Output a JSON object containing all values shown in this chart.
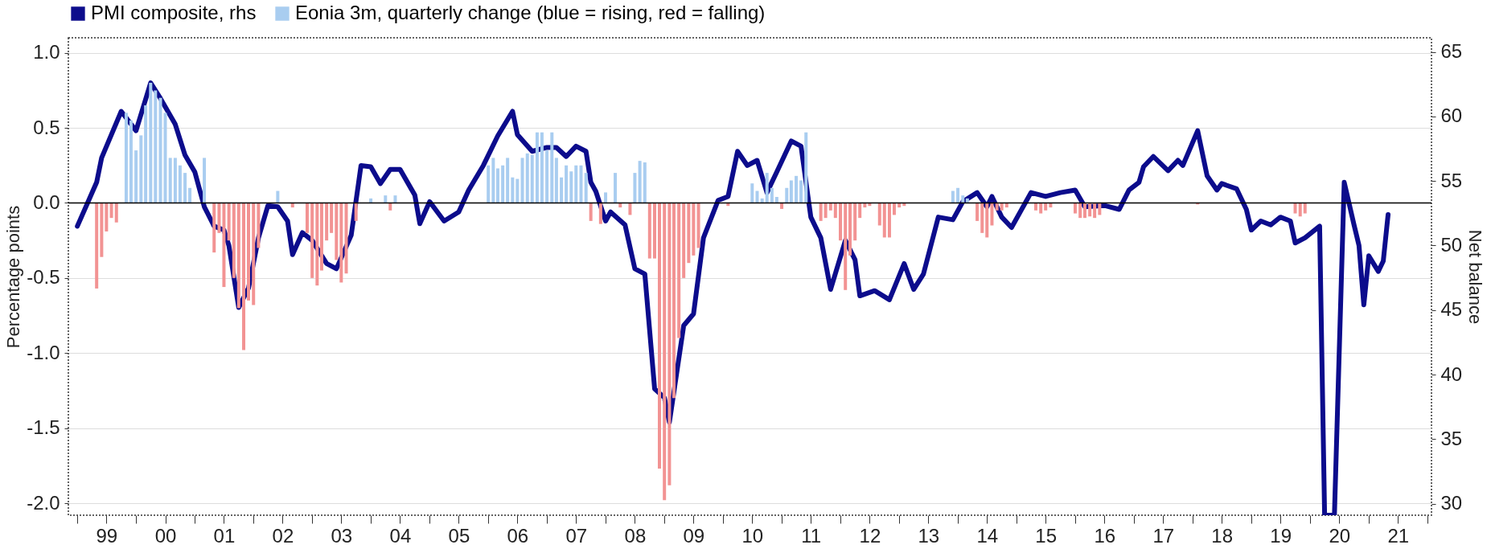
{
  "chart_data": {
    "type": "bar",
    "ylabel": "Percentage points",
    "y2label": "Net balance",
    "xlim": [
      "1998-12",
      "2022-01"
    ],
    "xticks": [
      {
        "value": "1999",
        "label": null
      },
      {
        "value": "1999-07",
        "label": "99"
      },
      {
        "value": "2000",
        "label": null
      },
      {
        "value": "2000-07",
        "label": "00"
      },
      {
        "value": "2001",
        "label": null
      },
      {
        "value": "2001-07",
        "label": "01"
      },
      {
        "value": "2002",
        "label": null
      },
      {
        "value": "2002-07",
        "label": "02"
      },
      {
        "value": "2003",
        "label": null
      },
      {
        "value": "2003-07",
        "label": "03"
      },
      {
        "value": "2004",
        "label": null
      },
      {
        "value": "2004-07",
        "label": "04"
      },
      {
        "value": "2005",
        "label": null
      },
      {
        "value": "2005-07",
        "label": "05"
      },
      {
        "value": "2006",
        "label": null
      },
      {
        "value": "2006-07",
        "label": "06"
      },
      {
        "value": "2007",
        "label": null
      },
      {
        "value": "2007-07",
        "label": "07"
      },
      {
        "value": "2008",
        "label": null
      },
      {
        "value": "2008-07",
        "label": "08"
      },
      {
        "value": "2009",
        "label": null
      },
      {
        "value": "2009-07",
        "label": "09"
      },
      {
        "value": "2010",
        "label": null
      },
      {
        "value": "2010-07",
        "label": "10"
      },
      {
        "value": "2011",
        "label": null
      },
      {
        "value": "2011-07",
        "label": "11"
      },
      {
        "value": "2012",
        "label": null
      },
      {
        "value": "2012-07",
        "label": "12"
      },
      {
        "value": "2013",
        "label": null
      },
      {
        "value": "2013-07",
        "label": "13"
      },
      {
        "value": "2014",
        "label": null
      },
      {
        "value": "2014-07",
        "label": "14"
      },
      {
        "value": "2015",
        "label": null
      },
      {
        "value": "2015-07",
        "label": "15"
      },
      {
        "value": "2016",
        "label": null
      },
      {
        "value": "2016-07",
        "label": "16"
      },
      {
        "value": "2017",
        "label": null
      },
      {
        "value": "2017-07",
        "label": "17"
      },
      {
        "value": "2018",
        "label": null
      },
      {
        "value": "2018-07",
        "label": "18"
      },
      {
        "value": "2019",
        "label": null
      },
      {
        "value": "2019-07",
        "label": "19"
      },
      {
        "value": "2020",
        "label": null
      },
      {
        "value": "2020-07",
        "label": "20"
      },
      {
        "value": "2021",
        "label": null
      },
      {
        "value": "2021-07",
        "label": "21"
      },
      {
        "value": "2022",
        "label": null
      }
    ],
    "ylim": [
      -2.08,
      1.1
    ],
    "yticks": [
      {
        "value": -2,
        "label": "-2.0"
      },
      -1.5,
      {
        "value": -1,
        "label": "-1.0"
      },
      -0.5,
      {
        "value": 0,
        "label": "0.0"
      },
      0.5,
      {
        "value": 1,
        "label": "1.0"
      }
    ],
    "y2lim": [
      29.1,
      66.1
    ],
    "y2ticks": [
      30,
      35,
      40,
      45,
      50,
      55,
      60,
      65
    ],
    "grid": "y",
    "legend": "top",
    "ref_lines": [
      {
        "axis": "y",
        "value": 0,
        "color": "#000000"
      }
    ],
    "series": [
      {
        "name": "PMI composite, rhs",
        "type": "line",
        "axis": "y2",
        "color": "#0c0c8c",
        "x": [
          "1999-01",
          "1999-05",
          "1999-06",
          "1999-10",
          "2000-01",
          "2000-04",
          "2000-06",
          "2000-09",
          "2000-11",
          "2001-01",
          "2001-03",
          "2001-05",
          "2001-07",
          "2001-08",
          "2001-10",
          "2001-12",
          "2002-02",
          "2002-04",
          "2002-06",
          "2002-08",
          "2002-09",
          "2002-11",
          "2003-01",
          "2003-04",
          "2003-06",
          "2003-09",
          "2003-11",
          "2004-01",
          "2004-03",
          "2004-05",
          "2004-07",
          "2004-10",
          "2004-11",
          "2005-01",
          "2005-04",
          "2005-07",
          "2005-09",
          "2005-12",
          "2006-03",
          "2006-06",
          "2006-07",
          "2006-10",
          "2007-01",
          "2007-03",
          "2007-05",
          "2007-07",
          "2007-09",
          "2007-10",
          "2007-11",
          "2008-01",
          "2008-02",
          "2008-05",
          "2008-07",
          "2008-09",
          "2008-11",
          "2009-01",
          "2009-02",
          "2009-05",
          "2009-07",
          "2009-09",
          "2009-12",
          "2010-02",
          "2010-04",
          "2010-06",
          "2010-08",
          "2010-10",
          "2010-12",
          "2011-03",
          "2011-05",
          "2011-07",
          "2011-09",
          "2011-11",
          "2012-02",
          "2012-04",
          "2012-05",
          "2012-08",
          "2012-11",
          "2013-02",
          "2013-04",
          "2013-06",
          "2013-09",
          "2013-12",
          "2014-02",
          "2014-05",
          "2014-07",
          "2014-08",
          "2014-10",
          "2014-12",
          "2015-04",
          "2015-07",
          "2015-10",
          "2016-01",
          "2016-03",
          "2016-07",
          "2016-10",
          "2016-12",
          "2017-02",
          "2017-03",
          "2017-05",
          "2017-08",
          "2017-10",
          "2017-11",
          "2018-02",
          "2018-04",
          "2018-06",
          "2018-07",
          "2018-10",
          "2018-12",
          "2019-01",
          "2019-03",
          "2019-05",
          "2019-07",
          "2019-09",
          "2019-10",
          "2019-12",
          "2020-03",
          "2020-04",
          "2020-06",
          "2020-08",
          "2020-10",
          "2020-11",
          "2020-12",
          "2021-01",
          "2021-03",
          "2021-04",
          "2021-05"
        ],
        "values": [
          51.5,
          54.9,
          56.8,
          60.4,
          58.9,
          62.6,
          61.4,
          59.4,
          57.0,
          55.7,
          53.0,
          51.5,
          51.2,
          50.0,
          45.2,
          46.7,
          50.6,
          53.1,
          53.0,
          51.9,
          49.3,
          51.0,
          50.4,
          48.6,
          48.2,
          50.8,
          56.2,
          56.1,
          54.8,
          55.9,
          55.9,
          53.9,
          51.7,
          53.4,
          51.9,
          52.6,
          54.3,
          56.2,
          58.5,
          60.4,
          58.6,
          57.3,
          57.6,
          57.6,
          56.9,
          57.7,
          57.3,
          54.9,
          54.2,
          51.9,
          52.6,
          51.6,
          48.2,
          47.8,
          38.9,
          38.2,
          36.3,
          43.8,
          44.7,
          50.6,
          53.5,
          53.8,
          57.3,
          56.2,
          56.6,
          54.1,
          55.7,
          58.1,
          57.7,
          52.2,
          50.6,
          46.6,
          50.4,
          48.9,
          46.1,
          46.5,
          45.8,
          48.6,
          46.6,
          47.8,
          52.2,
          52.0,
          53.4,
          54.1,
          53.0,
          53.8,
          52.2,
          51.4,
          54.1,
          53.8,
          54.1,
          54.3,
          53.0,
          53.1,
          52.8,
          54.3,
          54.9,
          56.1,
          56.9,
          55.8,
          56.6,
          56.2,
          58.9,
          55.4,
          54.3,
          54.8,
          54.4,
          52.8,
          51.2,
          51.9,
          51.6,
          52.2,
          51.9,
          50.2,
          50.6,
          51.5,
          29.1,
          29.1,
          54.9,
          51.6,
          50.0,
          45.4,
          49.2,
          48.0,
          48.8,
          52.4
        ]
      },
      {
        "name": "Eonia 3m, quarterly change (blue = rising, red = falling)",
        "color": "#a9cdf0",
        "x": [
          "1999-11",
          "1999-12",
          "2000-01",
          "2000-02",
          "2000-03",
          "2000-04",
          "2000-05",
          "2000-06",
          "2000-07",
          "2000-08",
          "2000-09",
          "2000-10",
          "2000-11",
          "2000-12",
          "2001-03",
          "2002-06",
          "2004-01",
          "2004-04",
          "2004-06",
          "2006-01",
          "2006-02",
          "2006-03",
          "2006-04",
          "2006-05",
          "2006-06",
          "2006-07",
          "2006-08",
          "2006-09",
          "2006-10",
          "2006-11",
          "2006-12",
          "2007-01",
          "2007-02",
          "2007-03",
          "2007-04",
          "2007-05",
          "2007-06",
          "2007-07",
          "2007-08",
          "2007-09",
          "2008-01",
          "2008-03",
          "2008-07",
          "2008-08",
          "2008-09",
          "2010-07",
          "2010-08",
          "2010-09",
          "2010-10",
          "2010-11",
          "2010-12",
          "2011-02",
          "2011-03",
          "2011-04",
          "2011-05",
          "2011-06",
          "2013-12",
          "2014-01",
          "2014-02",
          "2014-03"
        ],
        "values": [
          0.6,
          0.55,
          0.35,
          0.45,
          0.65,
          0.8,
          0.75,
          0.7,
          0.6,
          0.3,
          0.3,
          0.25,
          0.2,
          0.1,
          0.3,
          0.08,
          0.03,
          0.05,
          0.05,
          0.25,
          0.3,
          0.23,
          0.25,
          0.3,
          0.17,
          0.16,
          0.3,
          0.33,
          0.32,
          0.47,
          0.47,
          0.35,
          0.47,
          0.3,
          0.17,
          0.25,
          0.21,
          0.25,
          0.25,
          0.2,
          0.07,
          0.2,
          0.2,
          0.28,
          0.27,
          0.13,
          0.08,
          0.03,
          0.2,
          0.1,
          0.04,
          0.1,
          0.15,
          0.18,
          0.15,
          0.47,
          0.08,
          0.1,
          0.05,
          0.03
        ]
      },
      {
        "color": "#f29393",
        "x": [
          "1999-05",
          "1999-06",
          "1999-07",
          "1999-08",
          "1999-09",
          "2001-05",
          "2001-06",
          "2001-07",
          "2001-08",
          "2001-09",
          "2001-10",
          "2001-11",
          "2001-12",
          "2002-01",
          "2002-02",
          "2002-09",
          "2002-12",
          "2003-01",
          "2003-02",
          "2003-03",
          "2003-04",
          "2003-05",
          "2003-06",
          "2003-07",
          "2003-08",
          "2003-10",
          "2004-05",
          "2007-10",
          "2007-12",
          "2008-04",
          "2008-06",
          "2008-10",
          "2008-11",
          "2008-12",
          "2009-01",
          "2009-02",
          "2009-03",
          "2009-04",
          "2009-05",
          "2009-06",
          "2009-07",
          "2009-08",
          "2010-02",
          "2011-01",
          "2011-09",
          "2011-10",
          "2011-11",
          "2011-12",
          "2012-01",
          "2012-02",
          "2012-03",
          "2012-04",
          "2012-05",
          "2012-06",
          "2012-07",
          "2012-09",
          "2012-10",
          "2012-11",
          "2012-12",
          "2013-01",
          "2013-02",
          "2014-05",
          "2014-06",
          "2014-07",
          "2014-08",
          "2014-09",
          "2014-10",
          "2014-11",
          "2015-05",
          "2015-06",
          "2015-07",
          "2015-08",
          "2016-01",
          "2016-02",
          "2016-03",
          "2016-04",
          "2016-05",
          "2016-06",
          "2018-02",
          "2019-10",
          "2019-11",
          "2019-12"
        ],
        "values": [
          -0.57,
          -0.36,
          -0.19,
          -0.1,
          -0.13,
          -0.33,
          -0.2,
          -0.56,
          -0.25,
          -0.5,
          -0.7,
          -0.98,
          -0.65,
          -0.68,
          -0.3,
          -0.03,
          -0.2,
          -0.5,
          -0.55,
          -0.45,
          -0.25,
          -0.2,
          -0.38,
          -0.53,
          -0.47,
          -0.12,
          -0.05,
          -0.12,
          -0.14,
          -0.03,
          -0.08,
          -0.37,
          -0.37,
          -1.77,
          -1.98,
          -1.88,
          -1.3,
          -0.9,
          -0.5,
          -0.4,
          -0.35,
          -0.3,
          -0.02,
          -0.04,
          -0.12,
          -0.1,
          -0.05,
          -0.1,
          -0.25,
          -0.58,
          -0.35,
          -0.25,
          -0.1,
          -0.03,
          -0.02,
          -0.15,
          -0.23,
          -0.23,
          -0.08,
          -0.03,
          -0.02,
          -0.12,
          -0.2,
          -0.23,
          -0.15,
          -0.05,
          -0.05,
          -0.03,
          -0.05,
          -0.07,
          -0.05,
          -0.03,
          -0.07,
          -0.1,
          -0.1,
          -0.09,
          -0.1,
          -0.08,
          -0.01,
          -0.07,
          -0.09,
          -0.07
        ]
      }
    ]
  }
}
